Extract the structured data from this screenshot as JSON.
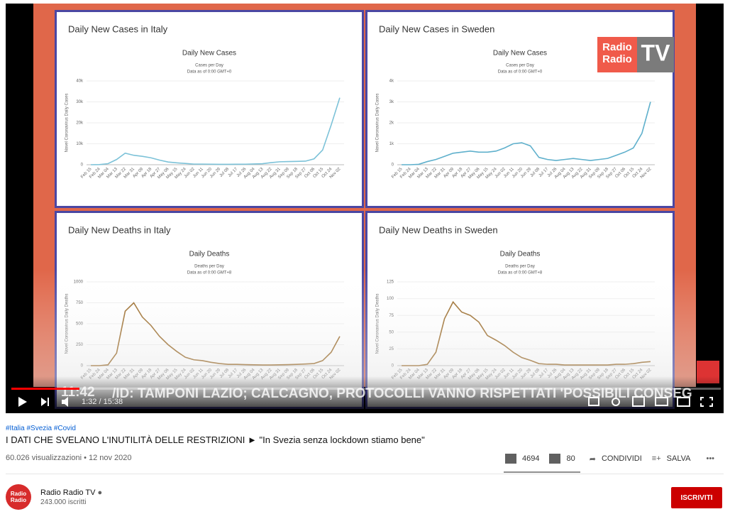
{
  "video": {
    "logo": {
      "line1": "Radio",
      "line2": "Radio",
      "tv": "TV"
    },
    "ticker": {
      "time": "11:42",
      "text": "/ID: TAMPONI LAZIO; CALCAGNO, PROTOCOLLI VANNO RISPETTATI 'POSSIBILI CONSEG"
    },
    "time": "1:32 / 15:38",
    "charts": [
      {
        "type": "line",
        "panel_title": "Daily New Cases in Italy",
        "title": "Daily New Cases",
        "subtitle": [
          "Cases per Day",
          "Data as of 0:00 GMT+0"
        ],
        "y_label": "Novel Coronavirus Daily Cases",
        "color": "#7cc2d8",
        "categories": [
          "Feb 15",
          "Feb 24",
          "Mar 04",
          "Mar 13",
          "Mar 22",
          "Mar 31",
          "Apr 09",
          "Apr 18",
          "Apr 27",
          "May 06",
          "May 15",
          "May 24",
          "Jun 02",
          "Jun 11",
          "Jun 20",
          "Jun 29",
          "Jul 08",
          "Jul 17",
          "Jul 26",
          "Aug 04",
          "Aug 13",
          "Aug 22",
          "Aug 31",
          "Sep 09",
          "Sep 18",
          "Sep 27",
          "Oct 06",
          "Oct 15",
          "Oct 24",
          "Nov 02"
        ],
        "values": [
          0,
          50,
          500,
          2500,
          5500,
          4500,
          4000,
          3300,
          2200,
          1300,
          900,
          600,
          300,
          300,
          250,
          200,
          200,
          220,
          250,
          350,
          500,
          1000,
          1400,
          1500,
          1600,
          1700,
          2800,
          7000,
          19000,
          32000
        ],
        "ylim": [
          0,
          40000
        ],
        "yticks": [
          0,
          {
            "value": 10000,
            "label": "10k"
          },
          {
            "value": 20000,
            "label": "20k"
          },
          {
            "value": 30000,
            "label": "30k"
          },
          {
            "value": 40000,
            "label": "40k"
          }
        ]
      },
      {
        "type": "line",
        "panel_title": "Daily New Cases in Sweden",
        "title": "Daily New Cases",
        "subtitle": [
          "Cases per Day",
          "Data as of 0:00 GMT+0"
        ],
        "y_label": "Novel Coronavirus Daily Cases",
        "color": "#5fb0cc",
        "categories": [
          "Feb 15",
          "Feb 24",
          "Mar 04",
          "Mar 13",
          "Mar 22",
          "Mar 31",
          "Apr 09",
          "Apr 18",
          "Apr 27",
          "May 06",
          "May 15",
          "May 24",
          "Jun 02",
          "Jun 11",
          "Jun 20",
          "Jun 29",
          "Jul 08",
          "Jul 17",
          "Jul 26",
          "Aug 04",
          "Aug 13",
          "Aug 22",
          "Aug 31",
          "Sep 09",
          "Sep 18",
          "Sep 27",
          "Oct 06",
          "Oct 15",
          "Oct 24",
          "Nov 02"
        ],
        "values": [
          0,
          0,
          20,
          150,
          250,
          400,
          550,
          600,
          650,
          600,
          600,
          650,
          800,
          1000,
          1050,
          900,
          350,
          250,
          200,
          250,
          300,
          250,
          200,
          250,
          300,
          450,
          600,
          800,
          1500,
          3000
        ],
        "ylim": [
          0,
          4000
        ],
        "yticks": [
          0,
          {
            "value": 1000,
            "label": "1k"
          },
          {
            "value": 2000,
            "label": "2k"
          },
          {
            "value": 3000,
            "label": "3k"
          },
          {
            "value": 4000,
            "label": "4k"
          }
        ]
      },
      {
        "type": "line",
        "panel_title": "Daily New Deaths in Italy",
        "title": "Daily Deaths",
        "subtitle": [
          "Deaths per Day",
          "Data as of 0:00 GMT+8"
        ],
        "y_label": "Novel Coronavirus Daily Deaths",
        "color": "#9a6a28",
        "categories": [
          "Feb 15",
          "Feb 24",
          "Mar 04",
          "Mar 13",
          "Mar 22",
          "Mar 31",
          "Apr 09",
          "Apr 18",
          "Apr 27",
          "May 06",
          "May 15",
          "May 24",
          "Jun 02",
          "Jun 11",
          "Jun 20",
          "Jun 29",
          "Jul 08",
          "Jul 17",
          "Jul 26",
          "Aug 04",
          "Aug 13",
          "Aug 22",
          "Aug 31",
          "Sep 09",
          "Sep 18",
          "Sep 27",
          "Oct 06",
          "Oct 15",
          "Oct 24",
          "Nov 02"
        ],
        "values": [
          0,
          0,
          10,
          150,
          650,
          750,
          580,
          480,
          350,
          250,
          170,
          100,
          70,
          60,
          40,
          25,
          15,
          15,
          12,
          10,
          8,
          8,
          10,
          12,
          15,
          20,
          25,
          60,
          160,
          350
        ],
        "ylim": [
          0,
          1000
        ],
        "yticks": [
          0,
          250,
          500,
          750,
          1000
        ]
      },
      {
        "type": "line",
        "panel_title": "Daily New Deaths in Sweden",
        "title": "Daily Deaths",
        "subtitle": [
          "Deaths per Day",
          "Data as of 0:00 GMT+8"
        ],
        "y_label": "Novel Coronavirus Daily Deaths",
        "color": "#9a6a28",
        "categories": [
          "Feb 15",
          "Feb 24",
          "Mar 04",
          "Mar 13",
          "Mar 22",
          "Mar 31",
          "Apr 09",
          "Apr 18",
          "Apr 27",
          "May 06",
          "May 15",
          "May 24",
          "Jun 02",
          "Jun 11",
          "Jun 20",
          "Jun 29",
          "Jul 08",
          "Jul 17",
          "Jul 26",
          "Aug 04",
          "Aug 13",
          "Aug 22",
          "Aug 31",
          "Sep 09",
          "Sep 18",
          "Sep 27",
          "Oct 06",
          "Oct 15",
          "Oct 24",
          "Nov 02"
        ],
        "values": [
          0,
          0,
          0,
          2,
          20,
          70,
          95,
          80,
          75,
          65,
          45,
          38,
          30,
          20,
          12,
          8,
          3,
          2,
          2,
          1,
          1,
          1,
          1,
          1,
          1,
          2,
          2,
          3,
          5,
          6
        ],
        "ylim": [
          0,
          125
        ],
        "yticks": [
          0,
          25,
          50,
          75,
          100,
          125
        ]
      }
    ]
  },
  "info": {
    "hashtags": "#Italia #Svezia #Covid",
    "title": "I DATI CHE SVELANO L'INUTILITÀ DELLE RESTRIZIONI ► \"In Svezia senza lockdown stiamo bene\"",
    "views": "60.026 visualizzazioni • 12 nov 2020",
    "likes": "4694",
    "dislikes": "80",
    "share": "CONDIVIDI",
    "save": "SALVA"
  },
  "channel": {
    "avatar1": "Radio",
    "avatar2": "Radio",
    "name": "Radio Radio TV",
    "subscribers": "243.000 iscritti",
    "subscribe": "ISCRIVITI"
  }
}
